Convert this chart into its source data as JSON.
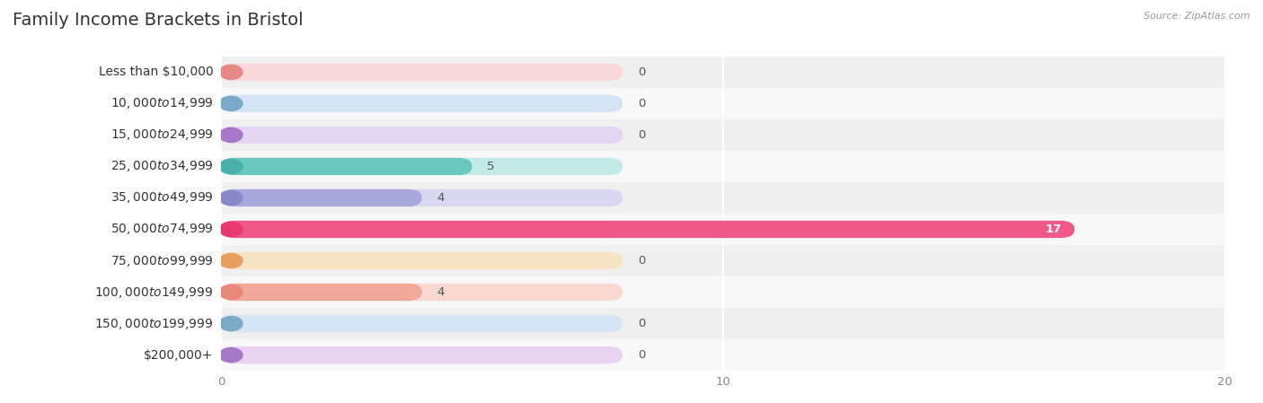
{
  "title": "Family Income Brackets in Bristol",
  "source": "Source: ZipAtlas.com",
  "categories": [
    "Less than $10,000",
    "$10,000 to $14,999",
    "$15,000 to $24,999",
    "$25,000 to $34,999",
    "$35,000 to $49,999",
    "$50,000 to $74,999",
    "$75,000 to $99,999",
    "$100,000 to $149,999",
    "$150,000 to $199,999",
    "$200,000+"
  ],
  "values": [
    0,
    0,
    0,
    5,
    4,
    17,
    0,
    4,
    0,
    0
  ],
  "bar_colors": [
    "#F0A0A0",
    "#A0BEDD",
    "#C0A0D8",
    "#68C8BE",
    "#A8A8DC",
    "#F05888",
    "#F4C090",
    "#F0A898",
    "#A0BEDD",
    "#C8A8D8"
  ],
  "bg_colors": [
    "#F8D8D8",
    "#D4E4F4",
    "#E4D4F4",
    "#C4EAE8",
    "#D8D8F0",
    "#F8C8D4",
    "#F8E4C4",
    "#F8D8D0",
    "#D4E4F4",
    "#E8D4F0"
  ],
  "circle_colors": [
    "#E88888",
    "#7AAAC8",
    "#A878C8",
    "#48B0A8",
    "#8888C8",
    "#E83870",
    "#E8A060",
    "#E88878",
    "#7AAAC8",
    "#A878C8"
  ],
  "xlim": [
    0,
    20
  ],
  "xticks": [
    0,
    10,
    20
  ],
  "row_even_color": "#f0f0f0",
  "row_odd_color": "#f8f8f8",
  "grid_color": "#ffffff",
  "title_fontsize": 14,
  "label_fontsize": 10,
  "value_fontsize": 9.5,
  "source_fontsize": 8
}
